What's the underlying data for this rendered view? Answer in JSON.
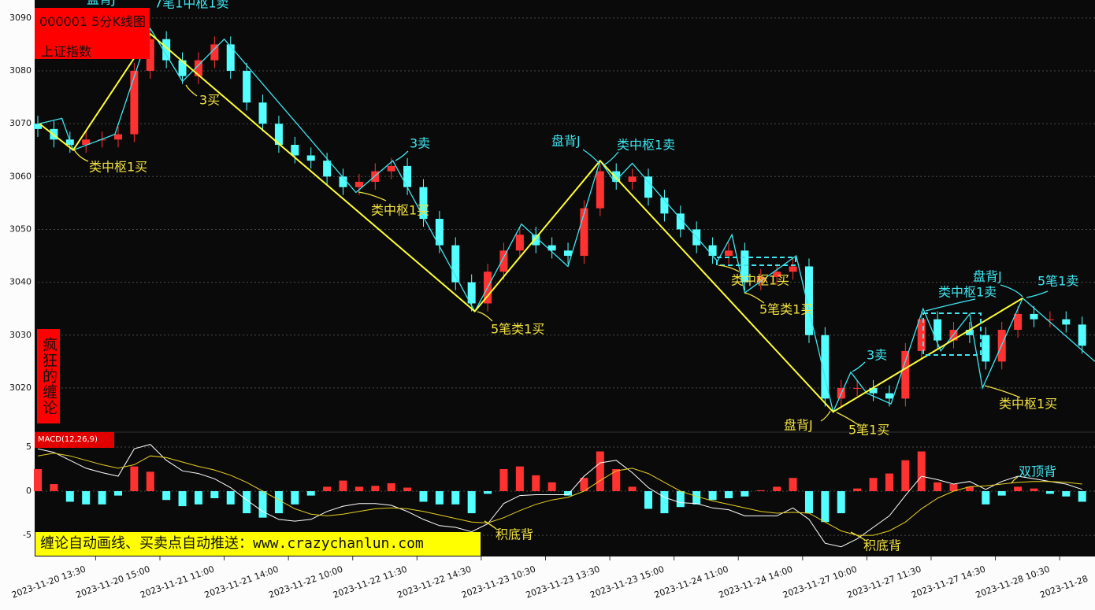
{
  "chart_data": [
    {
      "type": "candlestick",
      "title": "000001 5分K线图",
      "subtitle": "上证指数",
      "watermark": "疯狂的缠论",
      "banner": "缠论自动画线、买卖点自动推送：www.crazychanlun.com",
      "up_color": "#ff3232",
      "down_color": "#54ffff",
      "grid": true,
      "xlim": [
        0,
        65.8
      ],
      "ylim": [
        3011.8,
        3093.4
      ],
      "yticks": [
        3020,
        3030,
        3040,
        3050,
        3060,
        3070,
        3080,
        3090
      ],
      "xticks": [
        {
          "value": 3.6,
          "label": "2023-11-20 13:30"
        },
        {
          "value": 7.6,
          "label": "2023-11-20 15:00"
        },
        {
          "value": 11.6,
          "label": "2023-11-21 11:00"
        },
        {
          "value": 15.6,
          "label": "2023-11-21 14:00"
        },
        {
          "value": 19.6,
          "label": "2023-11-22 10:00"
        },
        {
          "value": 23.6,
          "label": "2023-11-22 11:30"
        },
        {
          "value": 27.6,
          "label": "2023-11-22 14:30"
        },
        {
          "value": 31.6,
          "label": "2023-11-23 10:30"
        },
        {
          "value": 35.6,
          "label": "2023-11-23 13:30"
        },
        {
          "value": 39.6,
          "label": "2023-11-23 15:00"
        },
        {
          "value": 43.6,
          "label": "2023-11-24 11:00"
        },
        {
          "value": 47.6,
          "label": "2023-11-24 14:00"
        },
        {
          "value": 51.6,
          "label": "2023-11-27 10:00"
        },
        {
          "value": 55.6,
          "label": "2023-11-27 11:30"
        },
        {
          "value": 59.6,
          "label": "2023-11-27 14:30"
        },
        {
          "value": 63.6,
          "label": "2023-11-28 10:30"
        },
        {
          "value": 67.6,
          "label": "2023-11-28"
        }
      ],
      "open": [
        3070,
        3069,
        3067,
        3066,
        3067,
        3067,
        3068,
        3080,
        3086,
        3082,
        3079,
        3082,
        3085,
        3080,
        3074,
        3070,
        3066,
        3064,
        3063,
        3060,
        3058,
        3059,
        3061,
        3062,
        3058,
        3052,
        3047,
        3040,
        3036,
        3042,
        3046,
        3049,
        3047,
        3046,
        3045,
        3054,
        3061,
        3059,
        3060,
        3056,
        3053,
        3050,
        3047,
        3045,
        3046,
        3040,
        3041,
        3042,
        3043,
        3030,
        3018,
        3020,
        3020,
        3019,
        3018,
        3027,
        3033,
        3029,
        3031,
        3030,
        3025,
        3031,
        3034,
        3033,
        3033,
        3032
      ],
      "high": [
        3071.5,
        3070.5,
        3068.5,
        3068.5,
        3068.5,
        3069.5,
        3081.5,
        3087.5,
        3087.5,
        3083.5,
        3083.5,
        3086.5,
        3086.5,
        3081.5,
        3075.5,
        3071.5,
        3067.5,
        3065.5,
        3064.5,
        3061.5,
        3060.5,
        3062.5,
        3063.5,
        3063.5,
        3059.5,
        3053.5,
        3048.5,
        3041.5,
        3043.5,
        3047.5,
        3050.5,
        3050.5,
        3048.5,
        3047.5,
        3055.5,
        3062.5,
        3062.5,
        3061.5,
        3061.5,
        3057.5,
        3054.5,
        3051.5,
        3048.5,
        3047.5,
        3047.5,
        3042.5,
        3043.5,
        3044.5,
        3044.5,
        3031.5,
        3021.5,
        3021.5,
        3021.5,
        3020.5,
        3028.5,
        3034.5,
        3034.5,
        3032.5,
        3032.5,
        3031.5,
        3032.5,
        3035.5,
        3035.5,
        3034.5,
        3034.5,
        3033.5
      ],
      "low": [
        3067.5,
        3065.5,
        3064.5,
        3064.5,
        3065.5,
        3065.5,
        3066.5,
        3078.5,
        3080.5,
        3077.5,
        3077.5,
        3080.5,
        3078.5,
        3072.5,
        3068.5,
        3064.5,
        3062.5,
        3061.5,
        3058.5,
        3056.5,
        3056.5,
        3057.5,
        3059.5,
        3056.5,
        3050.5,
        3045.5,
        3038.5,
        3034.5,
        3034.5,
        3040.5,
        3044.5,
        3045.5,
        3044.5,
        3043.5,
        3043.5,
        3052.5,
        3057.5,
        3057.5,
        3054.5,
        3051.5,
        3048.5,
        3045.5,
        3043.5,
        3043.5,
        3038.5,
        3038.5,
        3039.5,
        3040.5,
        3028.5,
        3016.5,
        3016.5,
        3018.5,
        3017.5,
        3016.5,
        3016.5,
        3025.5,
        3027.5,
        3027.5,
        3028.5,
        3023.5,
        3023.5,
        3029.5,
        3031.5,
        3031.5,
        3030.5,
        3026.5
      ],
      "close": [
        3069,
        3067,
        3066,
        3067,
        3067,
        3068,
        3080,
        3086,
        3082,
        3079,
        3082,
        3085,
        3080,
        3074,
        3070,
        3066,
        3064,
        3063,
        3060,
        3058,
        3059,
        3061,
        3062,
        3058,
        3052,
        3047,
        3040,
        3036,
        3042,
        3046,
        3049,
        3047,
        3046,
        3045,
        3054,
        3061,
        3059,
        3060,
        3056,
        3053,
        3050,
        3047,
        3045,
        3046,
        3040,
        3041,
        3042,
        3043,
        3030,
        3018,
        3020,
        3020,
        3019,
        3018,
        3027,
        3033,
        3029,
        3031,
        3030,
        3025,
        3031,
        3034,
        3033,
        3033,
        3032,
        3028
      ],
      "strokes": {
        "color": "#3ee6f0",
        "x": [
          0.1,
          1.5,
          2.2,
          4.8,
          7,
          9,
          11.6,
          19.8,
          22.1,
          27.2,
          30.1,
          33,
          35,
          35.9,
          37,
          42.3,
          43.2,
          44,
          47.2,
          49.5,
          50.6,
          51.6,
          53.1,
          55.1,
          56.2,
          58,
          58.8,
          61.3,
          65.8
        ],
        "y": [
          3070,
          3071,
          3065,
          3068,
          3088,
          3078,
          3086,
          3057,
          3063,
          3034.5,
          3051,
          3043,
          3063,
          3059,
          3062.5,
          3044,
          3049,
          3038,
          3045,
          3015.5,
          3023,
          3019,
          3017,
          3035,
          3027,
          3034,
          3020,
          3037,
          3025
        ]
      },
      "segment": {
        "color": "#ffff33",
        "x": [
          0.1,
          2.2,
          7,
          27.2,
          35,
          49.5,
          61.3
        ],
        "y": [
          3070,
          3065,
          3087,
          3034.5,
          3063,
          3015.5,
          3037
        ]
      },
      "annotations": [
        "盘背J",
        "7笔1中枢1卖",
        "类中枢1买",
        "3买",
        "3卖",
        "类中枢1买",
        "5笔类1买",
        "盘背J",
        "类中枢1卖",
        "类中枢1买",
        "5笔类1买",
        "3卖",
        "盘背J",
        "5笔1买",
        "类中枢1卖",
        "盘背J",
        "5笔1卖",
        "类中枢1买"
      ]
    },
    {
      "type": "macd",
      "title": "MACD(12,26,9)",
      "xlim": [
        0,
        65.8
      ],
      "ylim": [
        -7.4,
        6.6
      ],
      "yticks": [
        -5,
        0,
        5
      ],
      "up_color": "#ff3232",
      "down_color": "#54ffff",
      "histogram": [
        2.5,
        0.8,
        -1.2,
        -1.5,
        -1.5,
        -0.5,
        2.8,
        2.2,
        -1.0,
        -1.7,
        -1.5,
        -0.8,
        -1.5,
        -2.5,
        -3.0,
        -2.5,
        -1.5,
        -0.5,
        0.5,
        1.2,
        0.5,
        0.6,
        0.9,
        0.4,
        -1.2,
        -1.5,
        -1.5,
        -2.5,
        -0.3,
        2.5,
        2.8,
        1.8,
        1.0,
        -0.5,
        1.5,
        4.5,
        2.5,
        0.5,
        -2.0,
        -2.5,
        -1.8,
        -1.5,
        -1.0,
        -0.8,
        -0.6,
        0.1,
        0.5,
        1.5,
        -2.5,
        -3.5,
        -2.5,
        0.3,
        1.5,
        2.0,
        3.5,
        4.5,
        1.0,
        0.8,
        0.5,
        -1.5,
        -0.5,
        0.5,
        0.3,
        -0.3,
        -0.6,
        -1.2
      ],
      "dif": {
        "color": "#ffffff",
        "values": [
          4.8,
          4.4,
          3.5,
          2.6,
          2.1,
          1.7,
          4.8,
          5.3,
          3.5,
          2.3,
          2.0,
          1.4,
          0.4,
          -1.0,
          -2.3,
          -3.2,
          -3.4,
          -3.2,
          -2.3,
          -1.7,
          -1.4,
          -1.4,
          -1.6,
          -2.3,
          -3.2,
          -3.9,
          -4.1,
          -4.6,
          -3.7,
          -1.4,
          -0.5,
          -0.4,
          -0.4,
          -0.4,
          1.7,
          3.2,
          3.5,
          2.1,
          0.4,
          -0.7,
          -1.3,
          -1.4,
          -1.9,
          -2.1,
          -2.8,
          -2.8,
          -2.8,
          -1.9,
          -3.2,
          -5.9,
          -6.3,
          -5.4,
          -4.1,
          -2.8,
          -0.5,
          1.7,
          1.3,
          0.8,
          1.1,
          0.2,
          1.1,
          1.7,
          1.4,
          1.1,
          0.8,
          0.2
        ]
      },
      "dea": {
        "color": "#e8d020",
        "values": [
          4.0,
          4.3,
          4.0,
          3.5,
          3.0,
          2.6,
          3.0,
          4.0,
          3.8,
          3.3,
          2.8,
          2.4,
          1.8,
          1.0,
          0,
          -1.0,
          -2.0,
          -2.6,
          -2.8,
          -2.6,
          -2.3,
          -2.0,
          -1.9,
          -2.0,
          -2.3,
          -2.7,
          -3.1,
          -3.5,
          -3.6,
          -3.0,
          -2.2,
          -1.5,
          -1.0,
          -0.7,
          0,
          1.2,
          2.3,
          2.6,
          2.0,
          1.0,
          0,
          -0.6,
          -1.1,
          -1.5,
          -1.9,
          -2.3,
          -2.5,
          -2.4,
          -2.5,
          -3.5,
          -4.5,
          -5.0,
          -5.0,
          -4.5,
          -3.5,
          -2.0,
          -0.8,
          0,
          0.5,
          0.6,
          0.8,
          1.0,
          1.1,
          1.1,
          1.0,
          0.8
        ]
      },
      "annotations": [
        "积底背",
        "积底背",
        "双顶背"
      ]
    }
  ]
}
